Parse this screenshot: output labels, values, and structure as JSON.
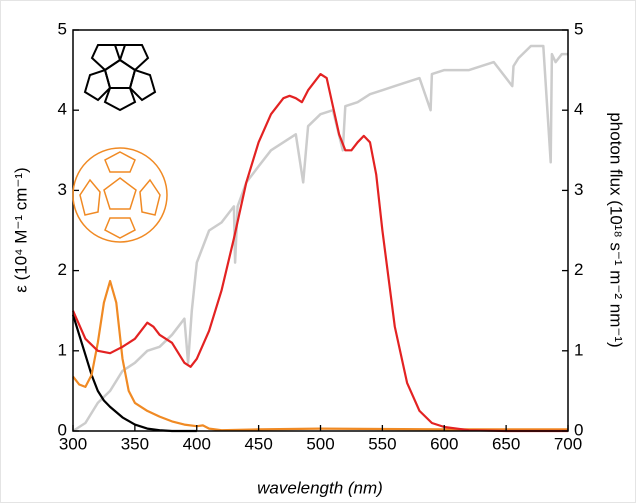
{
  "chart_data": {
    "type": "line",
    "xlabel": "wavelength (nm)",
    "ylabel": "ε (10⁴ M⁻¹ cm⁻¹)",
    "y2label": "photon flux (10¹⁸ s⁻¹ m⁻² nm⁻¹)",
    "xlim": [
      300,
      700
    ],
    "xticks": [
      300,
      350,
      400,
      450,
      500,
      550,
      600,
      650,
      700
    ],
    "ylim": [
      0,
      5
    ],
    "yticks": [
      0,
      1,
      2,
      3,
      4,
      5
    ],
    "y2lim": [
      0,
      5
    ],
    "y2ticks": [
      0,
      1,
      2,
      3,
      4,
      5
    ],
    "series": [
      {
        "color": "#cccccc",
        "axis": "y2",
        "x": [
          300,
          310,
          320,
          330,
          340,
          350,
          360,
          370,
          380,
          390,
          393,
          396,
          400,
          410,
          420,
          430,
          431,
          433,
          440,
          450,
          460,
          470,
          480,
          486,
          490,
          500,
          510,
          518,
          520,
          530,
          540,
          550,
          560,
          570,
          580,
          589,
          590,
          600,
          620,
          640,
          655,
          656,
          660,
          670,
          680,
          686,
          687,
          690,
          695,
          700
        ],
        "values": [
          0,
          0.1,
          0.35,
          0.5,
          0.75,
          0.85,
          1.0,
          1.05,
          1.2,
          1.4,
          0.85,
          1.5,
          2.1,
          2.5,
          2.6,
          2.8,
          2.1,
          2.8,
          3.1,
          3.3,
          3.5,
          3.6,
          3.7,
          3.1,
          3.8,
          3.95,
          4.0,
          3.5,
          4.05,
          4.1,
          4.2,
          4.25,
          4.3,
          4.35,
          4.4,
          4.0,
          4.45,
          4.5,
          4.5,
          4.6,
          4.3,
          4.55,
          4.65,
          4.8,
          4.8,
          3.35,
          4.7,
          4.6,
          4.7,
          4.7
        ]
      },
      {
        "color": "#000000",
        "x": [
          300,
          305,
          310,
          315,
          320,
          325,
          330,
          340,
          350,
          360,
          370,
          380,
          400
        ],
        "values": [
          1.45,
          1.2,
          0.95,
          0.7,
          0.5,
          0.38,
          0.3,
          0.17,
          0.08,
          0.03,
          0.01,
          0,
          0
        ]
      },
      {
        "color": "#f08a24",
        "x": [
          300,
          305,
          310,
          315,
          320,
          325,
          330,
          335,
          340,
          345,
          350,
          360,
          370,
          380,
          390,
          400,
          405,
          410,
          420,
          450,
          500,
          600,
          700
        ],
        "values": [
          0.68,
          0.58,
          0.55,
          0.7,
          1.1,
          1.6,
          1.87,
          1.6,
          0.9,
          0.5,
          0.35,
          0.25,
          0.18,
          0.12,
          0.08,
          0.06,
          0.07,
          0.03,
          0.01,
          0.02,
          0.03,
          0.02,
          0.02
        ]
      },
      {
        "color": "#e32222",
        "x": [
          300,
          310,
          320,
          330,
          340,
          350,
          360,
          365,
          370,
          380,
          390,
          395,
          400,
          410,
          420,
          430,
          440,
          450,
          460,
          470,
          475,
          480,
          485,
          490,
          500,
          505,
          510,
          515,
          520,
          525,
          530,
          535,
          540,
          545,
          550,
          560,
          570,
          580,
          590,
          600,
          620,
          650,
          700
        ],
        "values": [
          1.5,
          1.15,
          1.0,
          0.97,
          1.05,
          1.15,
          1.35,
          1.3,
          1.2,
          1.1,
          0.85,
          0.8,
          0.9,
          1.25,
          1.75,
          2.4,
          3.1,
          3.6,
          3.95,
          4.15,
          4.18,
          4.15,
          4.1,
          4.25,
          4.45,
          4.4,
          4.05,
          3.7,
          3.5,
          3.5,
          3.6,
          3.68,
          3.6,
          3.2,
          2.5,
          1.3,
          0.6,
          0.25,
          0.1,
          0.05,
          0.01,
          0,
          0
        ]
      }
    ]
  }
}
